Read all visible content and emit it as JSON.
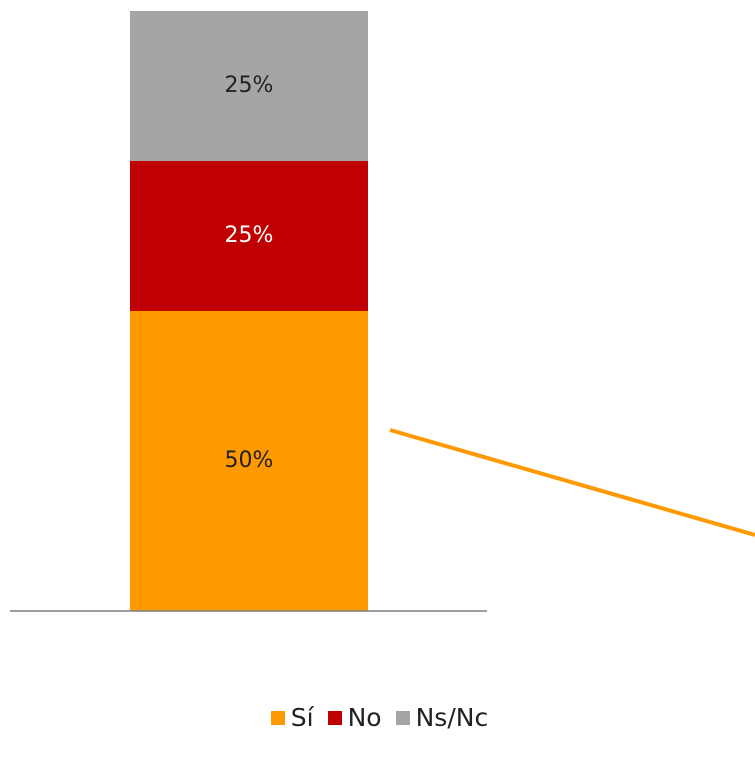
{
  "chart_data": {
    "type": "bar",
    "stacked": true,
    "percent": true,
    "categories": [
      ""
    ],
    "series": [
      {
        "name": "Sí",
        "values": [
          50
        ],
        "color": "#FF9900",
        "label": "50%",
        "label_color": "#222222"
      },
      {
        "name": "No",
        "values": [
          25
        ],
        "color": "#C00000",
        "label": "25%",
        "label_color": "#ffffff"
      },
      {
        "name": "Ns/Nc",
        "values": [
          25
        ],
        "color": "#A5A5A5",
        "label": "25%",
        "label_color": "#222222"
      }
    ],
    "ylim": [
      0,
      100
    ],
    "grid": false,
    "legend": "bottom",
    "title": "",
    "xlabel": "",
    "ylabel": ""
  }
}
